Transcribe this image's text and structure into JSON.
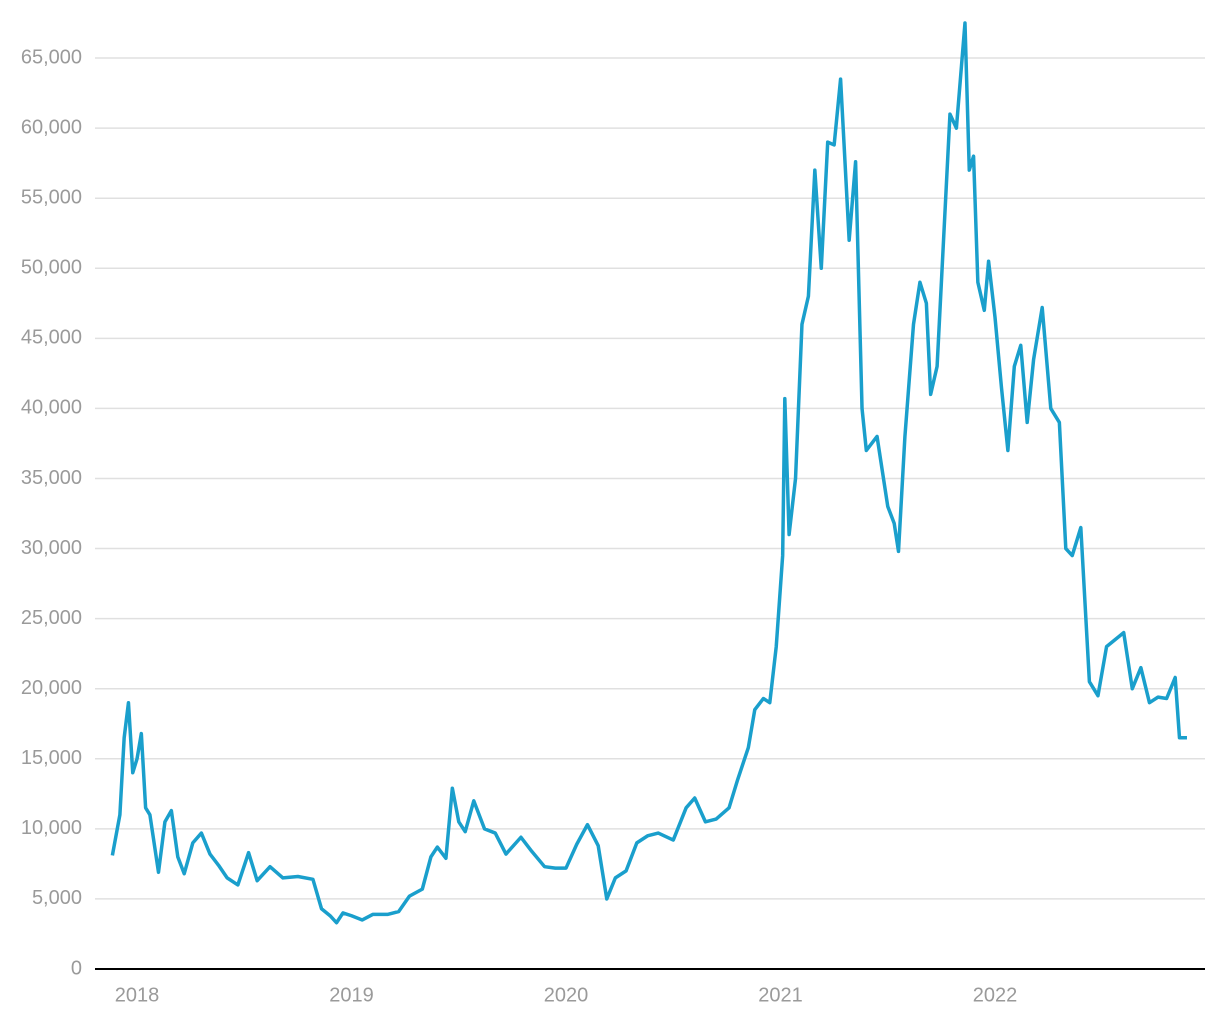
{
  "chart_data": {
    "type": "line",
    "color": "#1a9fcc",
    "grid": true,
    "x": [
      2017.885,
      2017.92,
      2017.94,
      2017.96,
      2017.98,
      2018.0,
      2018.02,
      2018.04,
      2018.06,
      2018.1,
      2018.13,
      2018.16,
      2018.19,
      2018.22,
      2018.26,
      2018.3,
      2018.34,
      2018.38,
      2018.42,
      2018.47,
      2018.52,
      2018.56,
      2018.62,
      2018.68,
      2018.75,
      2018.82,
      2018.86,
      2018.9,
      2018.93,
      2018.96,
      2019.0,
      2019.05,
      2019.1,
      2019.17,
      2019.22,
      2019.27,
      2019.33,
      2019.37,
      2019.4,
      2019.44,
      2019.47,
      2019.5,
      2019.53,
      2019.57,
      2019.62,
      2019.67,
      2019.72,
      2019.79,
      2019.84,
      2019.9,
      2019.95,
      2020.0,
      2020.05,
      2020.1,
      2020.15,
      2020.19,
      2020.23,
      2020.28,
      2020.33,
      2020.38,
      2020.43,
      2020.5,
      2020.56,
      2020.6,
      2020.65,
      2020.7,
      2020.76,
      2020.8,
      2020.85,
      2020.88,
      2020.92,
      2020.95,
      2020.98,
      2021.01,
      2021.02,
      2021.04,
      2021.07,
      2021.1,
      2021.13,
      2021.16,
      2021.19,
      2021.22,
      2021.25,
      2021.28,
      2021.32,
      2021.35,
      2021.38,
      2021.4,
      2021.45,
      2021.5,
      2021.53,
      2021.55,
      2021.58,
      2021.62,
      2021.65,
      2021.68,
      2021.7,
      2021.73,
      2021.77,
      2021.79,
      2021.82,
      2021.86,
      2021.88,
      2021.9,
      2021.92,
      2021.95,
      2021.97,
      2022.0,
      2022.03,
      2022.06,
      2022.09,
      2022.12,
      2022.15,
      2022.18,
      2022.22,
      2022.26,
      2022.3,
      2022.33,
      2022.36,
      2022.4,
      2022.44,
      2022.48,
      2022.52,
      2022.56,
      2022.6,
      2022.64,
      2022.68,
      2022.72,
      2022.76,
      2022.8,
      2022.84,
      2022.86,
      2022.895
    ],
    "values": [
      8100,
      11000,
      16500,
      19000,
      14000,
      15000,
      16800,
      11500,
      11000,
      6900,
      10500,
      11300,
      8000,
      6800,
      9000,
      9700,
      8200,
      7400,
      6500,
      6000,
      8300,
      6300,
      7300,
      6500,
      6600,
      6400,
      4300,
      3800,
      3300,
      4000,
      3800,
      3500,
      3900,
      3900,
      4100,
      5200,
      5700,
      8000,
      8700,
      7900,
      12900,
      10500,
      9800,
      12000,
      10000,
      9700,
      8200,
      9400,
      8400,
      7300,
      7200,
      7200,
      8900,
      10300,
      8800,
      5000,
      6500,
      7000,
      9000,
      9500,
      9700,
      9200,
      11500,
      12200,
      10500,
      10700,
      11500,
      13500,
      15800,
      18500,
      19300,
      19000,
      23000,
      29500,
      40700,
      31000,
      35000,
      46000,
      48000,
      57000,
      50000,
      59000,
      58800,
      63500,
      52000,
      57600,
      40000,
      37000,
      38000,
      33000,
      31800,
      29800,
      38000,
      46000,
      49000,
      47500,
      41000,
      43000,
      55000,
      61000,
      60000,
      67500,
      57000,
      58000,
      49000,
      47000,
      50500,
      46500,
      41500,
      37000,
      43000,
      44500,
      39000,
      43500,
      47200,
      40000,
      39000,
      30000,
      29500,
      31500,
      20500,
      19500,
      23000,
      23500,
      24000,
      20000,
      21500,
      19000,
      19400,
      19300,
      20800,
      16500,
      16500
    ],
    "xlim": [
      2017.804,
      2022.979
    ],
    "xticks": [
      2018,
      2019,
      2020,
      2021,
      2022
    ],
    "ylim": [
      0,
      68000
    ],
    "yticks": [
      0,
      {
        "value": 5000,
        "label": "5,000"
      },
      {
        "value": 10000,
        "label": "10,000"
      },
      {
        "value": 15000,
        "label": "15,000"
      },
      {
        "value": 20000,
        "label": "20,000"
      },
      {
        "value": 25000,
        "label": "25,000"
      },
      {
        "value": 30000,
        "label": "30,000"
      },
      {
        "value": 35000,
        "label": "35,000"
      },
      {
        "value": 40000,
        "label": "40,000"
      },
      {
        "value": 45000,
        "label": "45,000"
      },
      {
        "value": 50000,
        "label": "50,000"
      },
      {
        "value": 55000,
        "label": "55,000"
      },
      {
        "value": 60000,
        "label": "60,000"
      },
      {
        "value": 65000,
        "label": "65,000"
      }
    ]
  }
}
